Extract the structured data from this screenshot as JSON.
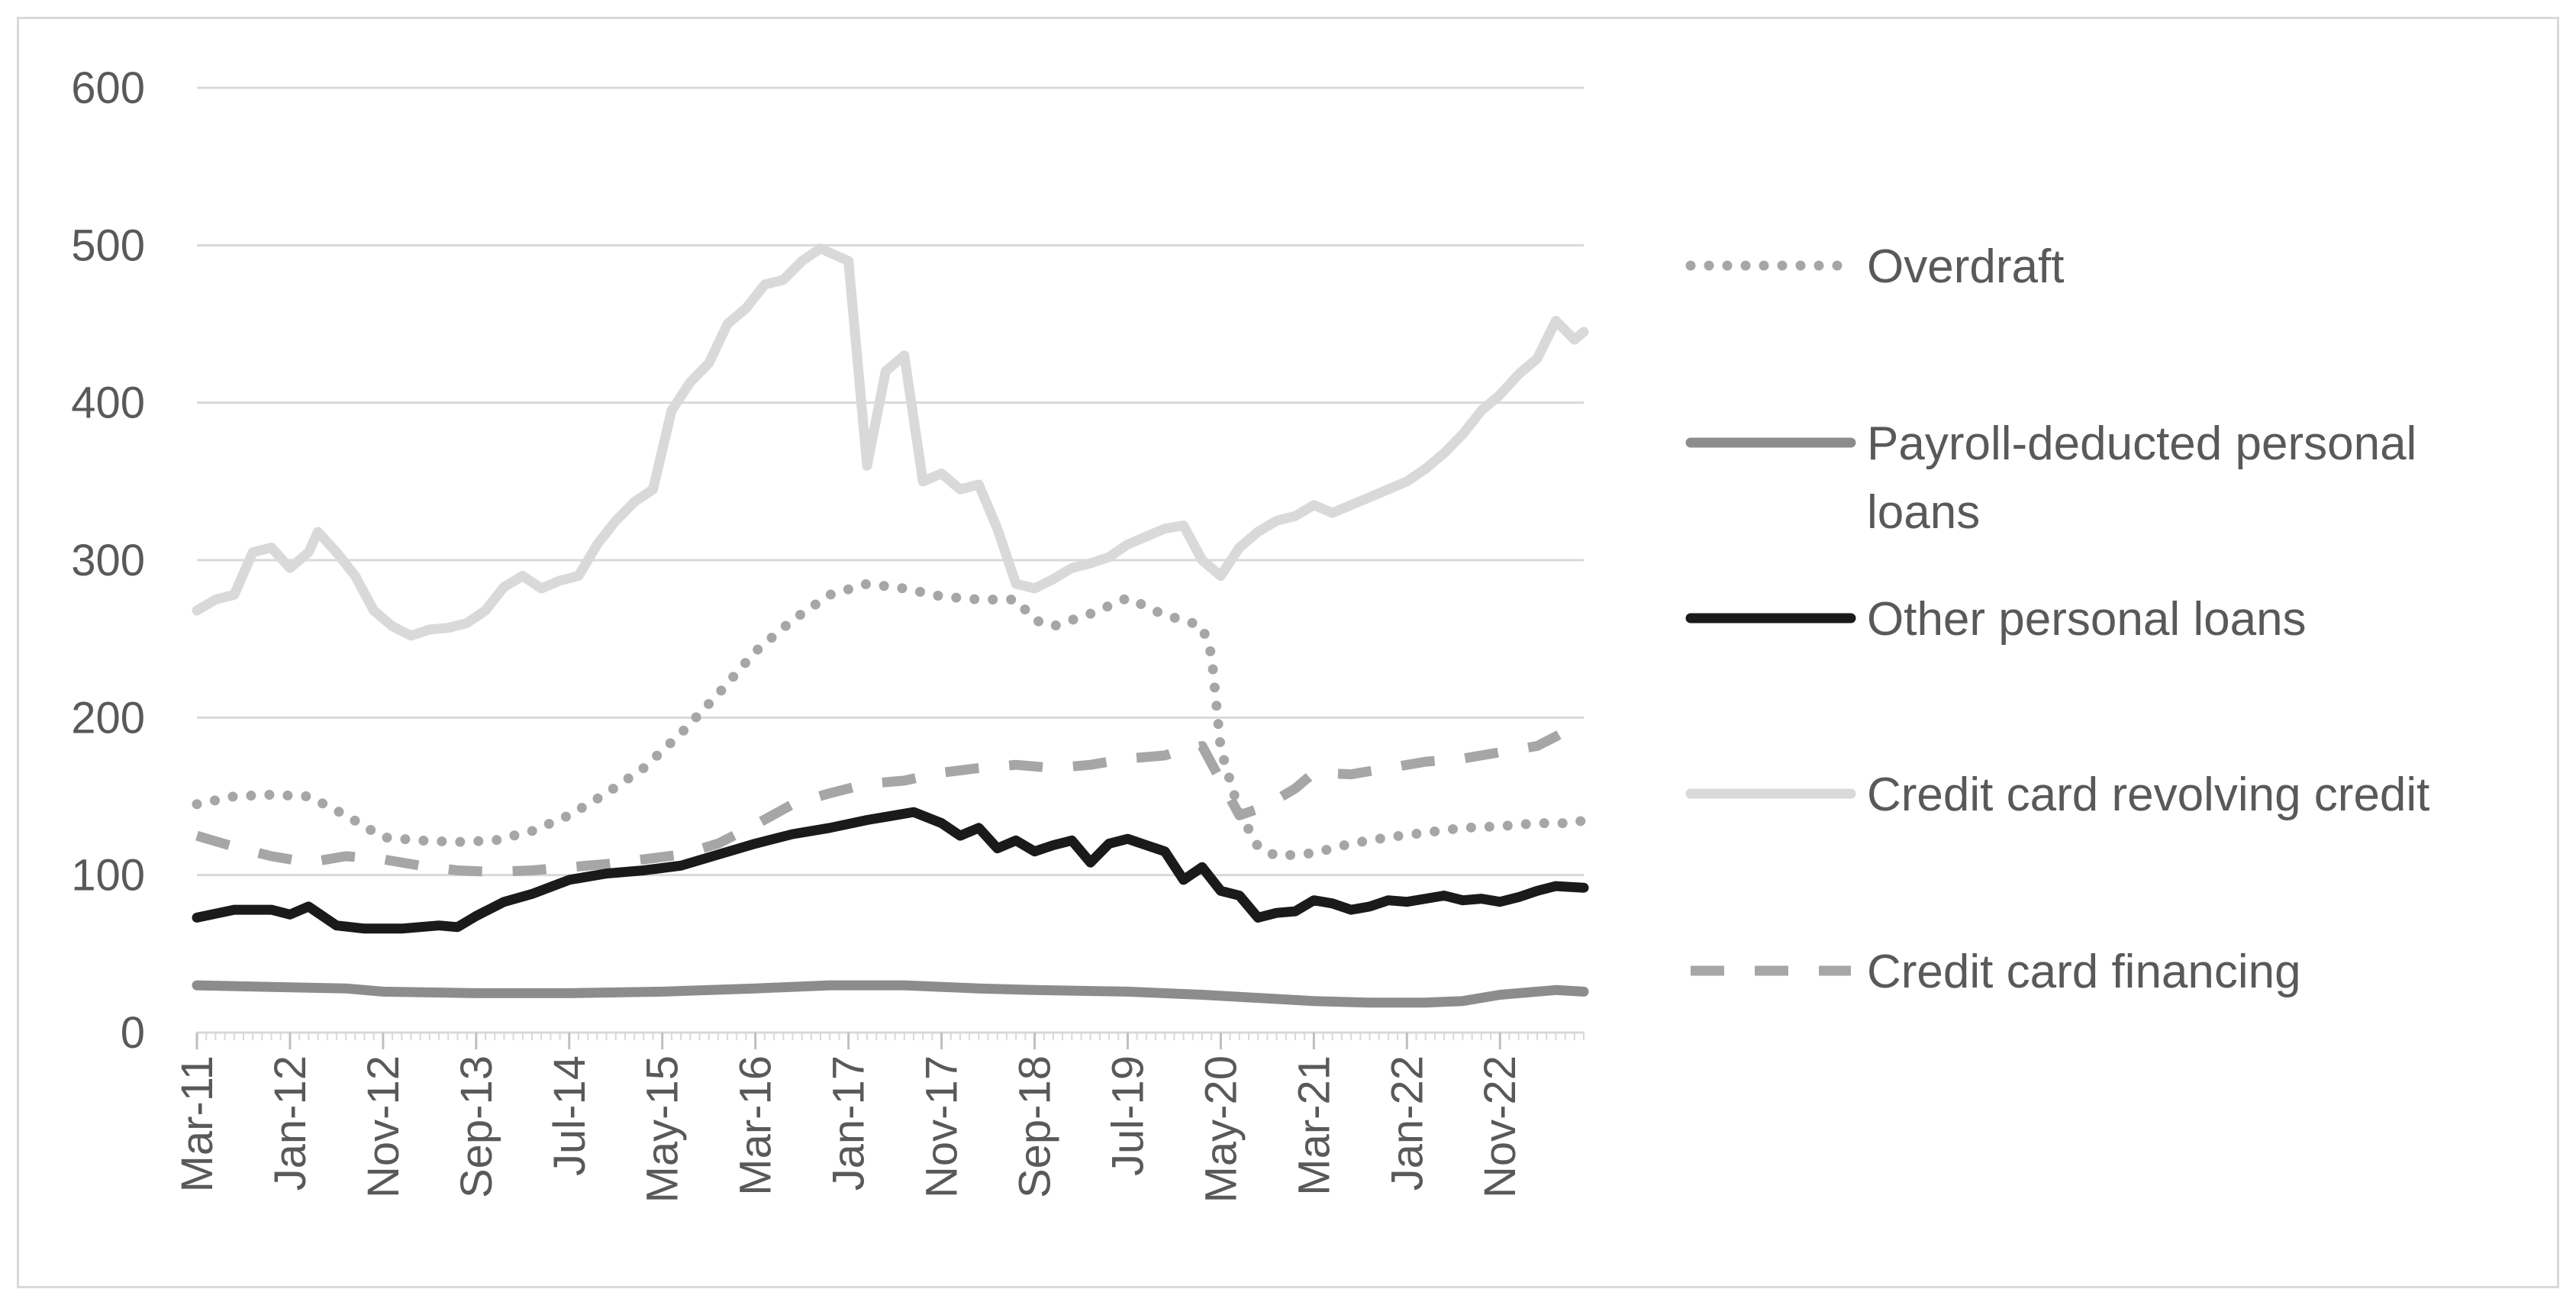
{
  "chart_data": {
    "type": "line",
    "title": "",
    "xlabel": "",
    "ylabel": "",
    "ylim": [
      0,
      600
    ],
    "yticks": [
      "0",
      "100",
      "200",
      "300",
      "400",
      "500",
      "600"
    ],
    "xticks": [
      "Mar-11",
      "Jan-12",
      "Nov-12",
      "Sep-13",
      "Jul-14",
      "May-15",
      "Mar-16",
      "Jan-17",
      "Nov-17",
      "Sep-18",
      "Jul-19",
      "May-20",
      "Mar-21",
      "Jan-22",
      "Nov-22"
    ],
    "grid": true,
    "legend_position": "right",
    "x_note": "x values are month indices from Mar-11 (0) to Aug-23 (149)",
    "series": [
      {
        "name": "Overdraft",
        "style": "dotted",
        "color": "#a6a6a6",
        "points": [
          [
            0,
            145
          ],
          [
            4,
            150
          ],
          [
            8,
            151
          ],
          [
            12,
            150
          ],
          [
            16,
            138
          ],
          [
            20,
            124
          ],
          [
            24,
            122
          ],
          [
            28,
            121
          ],
          [
            32,
            122
          ],
          [
            36,
            128
          ],
          [
            40,
            138
          ],
          [
            44,
            152
          ],
          [
            48,
            168
          ],
          [
            52,
            190
          ],
          [
            56,
            215
          ],
          [
            60,
            242
          ],
          [
            64,
            262
          ],
          [
            68,
            278
          ],
          [
            72,
            285
          ],
          [
            76,
            282
          ],
          [
            80,
            277
          ],
          [
            84,
            275
          ],
          [
            88,
            275
          ],
          [
            90,
            262
          ],
          [
            92,
            258
          ],
          [
            96,
            266
          ],
          [
            100,
            276
          ],
          [
            104,
            265
          ],
          [
            106,
            262
          ],
          [
            108,
            258
          ],
          [
            109,
            240
          ],
          [
            110,
            180
          ],
          [
            112,
            140
          ],
          [
            114,
            118
          ],
          [
            116,
            112
          ],
          [
            120,
            114
          ],
          [
            124,
            120
          ],
          [
            128,
            124
          ],
          [
            132,
            127
          ],
          [
            136,
            130
          ],
          [
            140,
            131
          ],
          [
            144,
            133
          ],
          [
            148,
            133
          ],
          [
            149,
            135
          ]
        ]
      },
      {
        "name": "Payroll-deducted personal loans",
        "style": "solid",
        "color": "#8c8c8c",
        "points": [
          [
            0,
            30
          ],
          [
            8,
            29
          ],
          [
            16,
            28
          ],
          [
            20,
            26
          ],
          [
            30,
            25
          ],
          [
            40,
            25
          ],
          [
            50,
            26
          ],
          [
            60,
            28
          ],
          [
            68,
            30
          ],
          [
            76,
            30
          ],
          [
            84,
            28
          ],
          [
            90,
            27
          ],
          [
            100,
            26
          ],
          [
            108,
            24
          ],
          [
            114,
            22
          ],
          [
            120,
            20
          ],
          [
            126,
            19
          ],
          [
            132,
            19
          ],
          [
            136,
            20
          ],
          [
            140,
            24
          ],
          [
            146,
            27
          ],
          [
            149,
            26
          ]
        ]
      },
      {
        "name": "Other personal loans",
        "style": "solid",
        "color": "#1a1a1a",
        "points": [
          [
            0,
            73
          ],
          [
            4,
            78
          ],
          [
            8,
            78
          ],
          [
            10,
            75
          ],
          [
            12,
            80
          ],
          [
            15,
            68
          ],
          [
            18,
            66
          ],
          [
            22,
            66
          ],
          [
            26,
            68
          ],
          [
            28,
            67
          ],
          [
            30,
            74
          ],
          [
            33,
            83
          ],
          [
            36,
            88
          ],
          [
            40,
            97
          ],
          [
            44,
            101
          ],
          [
            48,
            103
          ],
          [
            52,
            106
          ],
          [
            56,
            113
          ],
          [
            60,
            120
          ],
          [
            64,
            126
          ],
          [
            68,
            130
          ],
          [
            72,
            135
          ],
          [
            75,
            138
          ],
          [
            77,
            140
          ],
          [
            80,
            133
          ],
          [
            82,
            125
          ],
          [
            84,
            130
          ],
          [
            86,
            117
          ],
          [
            88,
            122
          ],
          [
            90,
            115
          ],
          [
            92,
            119
          ],
          [
            94,
            122
          ],
          [
            96,
            108
          ],
          [
            98,
            120
          ],
          [
            100,
            123
          ],
          [
            102,
            119
          ],
          [
            104,
            115
          ],
          [
            106,
            97
          ],
          [
            108,
            105
          ],
          [
            110,
            90
          ],
          [
            112,
            87
          ],
          [
            114,
            73
          ],
          [
            116,
            76
          ],
          [
            118,
            77
          ],
          [
            120,
            84
          ],
          [
            122,
            82
          ],
          [
            124,
            78
          ],
          [
            126,
            80
          ],
          [
            128,
            84
          ],
          [
            130,
            83
          ],
          [
            132,
            85
          ],
          [
            134,
            87
          ],
          [
            136,
            84
          ],
          [
            138,
            85
          ],
          [
            140,
            83
          ],
          [
            142,
            86
          ],
          [
            144,
            90
          ],
          [
            146,
            93
          ],
          [
            149,
            92
          ]
        ]
      },
      {
        "name": "Credit card revolving credit",
        "style": "solid",
        "color": "#d9d9d9",
        "points": [
          [
            0,
            268
          ],
          [
            2,
            275
          ],
          [
            4,
            278
          ],
          [
            6,
            305
          ],
          [
            8,
            308
          ],
          [
            10,
            295
          ],
          [
            12,
            305
          ],
          [
            13,
            318
          ],
          [
            15,
            305
          ],
          [
            17,
            290
          ],
          [
            19,
            268
          ],
          [
            21,
            258
          ],
          [
            23,
            252
          ],
          [
            25,
            256
          ],
          [
            27,
            257
          ],
          [
            29,
            260
          ],
          [
            31,
            268
          ],
          [
            33,
            283
          ],
          [
            35,
            290
          ],
          [
            37,
            282
          ],
          [
            39,
            287
          ],
          [
            41,
            290
          ],
          [
            43,
            310
          ],
          [
            45,
            325
          ],
          [
            47,
            337
          ],
          [
            49,
            345
          ],
          [
            51,
            395
          ],
          [
            53,
            413
          ],
          [
            55,
            425
          ],
          [
            57,
            450
          ],
          [
            59,
            460
          ],
          [
            61,
            475
          ],
          [
            63,
            478
          ],
          [
            65,
            490
          ],
          [
            67,
            498
          ],
          [
            70,
            490
          ],
          [
            72,
            360
          ],
          [
            74,
            420
          ],
          [
            76,
            430
          ],
          [
            78,
            350
          ],
          [
            80,
            355
          ],
          [
            82,
            345
          ],
          [
            84,
            348
          ],
          [
            86,
            320
          ],
          [
            88,
            285
          ],
          [
            90,
            282
          ],
          [
            92,
            288
          ],
          [
            94,
            295
          ],
          [
            96,
            298
          ],
          [
            98,
            302
          ],
          [
            100,
            310
          ],
          [
            102,
            315
          ],
          [
            104,
            320
          ],
          [
            106,
            322
          ],
          [
            108,
            300
          ],
          [
            110,
            290
          ],
          [
            112,
            308
          ],
          [
            114,
            318
          ],
          [
            116,
            325
          ],
          [
            118,
            328
          ],
          [
            120,
            335
          ],
          [
            122,
            330
          ],
          [
            124,
            335
          ],
          [
            126,
            340
          ],
          [
            128,
            345
          ],
          [
            130,
            350
          ],
          [
            132,
            358
          ],
          [
            134,
            368
          ],
          [
            136,
            380
          ],
          [
            138,
            395
          ],
          [
            140,
            405
          ],
          [
            142,
            418
          ],
          [
            144,
            428
          ],
          [
            146,
            452
          ],
          [
            148,
            440
          ],
          [
            149,
            445
          ]
        ]
      },
      {
        "name": "Credit card financing",
        "style": "dashed",
        "color": "#a6a6a6",
        "points": [
          [
            0,
            125
          ],
          [
            4,
            118
          ],
          [
            8,
            112
          ],
          [
            12,
            108
          ],
          [
            16,
            112
          ],
          [
            20,
            110
          ],
          [
            24,
            106
          ],
          [
            28,
            103
          ],
          [
            32,
            102
          ],
          [
            36,
            103
          ],
          [
            40,
            105
          ],
          [
            44,
            107
          ],
          [
            48,
            110
          ],
          [
            52,
            113
          ],
          [
            56,
            120
          ],
          [
            60,
            132
          ],
          [
            64,
            145
          ],
          [
            68,
            152
          ],
          [
            72,
            158
          ],
          [
            76,
            160
          ],
          [
            80,
            165
          ],
          [
            84,
            168
          ],
          [
            88,
            170
          ],
          [
            92,
            168
          ],
          [
            96,
            170
          ],
          [
            100,
            174
          ],
          [
            104,
            176
          ],
          [
            106,
            180
          ],
          [
            108,
            182
          ],
          [
            110,
            160
          ],
          [
            112,
            138
          ],
          [
            114,
            142
          ],
          [
            116,
            148
          ],
          [
            118,
            155
          ],
          [
            120,
            165
          ],
          [
            124,
            164
          ],
          [
            128,
            168
          ],
          [
            132,
            172
          ],
          [
            136,
            174
          ],
          [
            140,
            178
          ],
          [
            144,
            182
          ],
          [
            146,
            188
          ],
          [
            148,
            195
          ],
          [
            149,
            198
          ]
        ]
      }
    ]
  }
}
